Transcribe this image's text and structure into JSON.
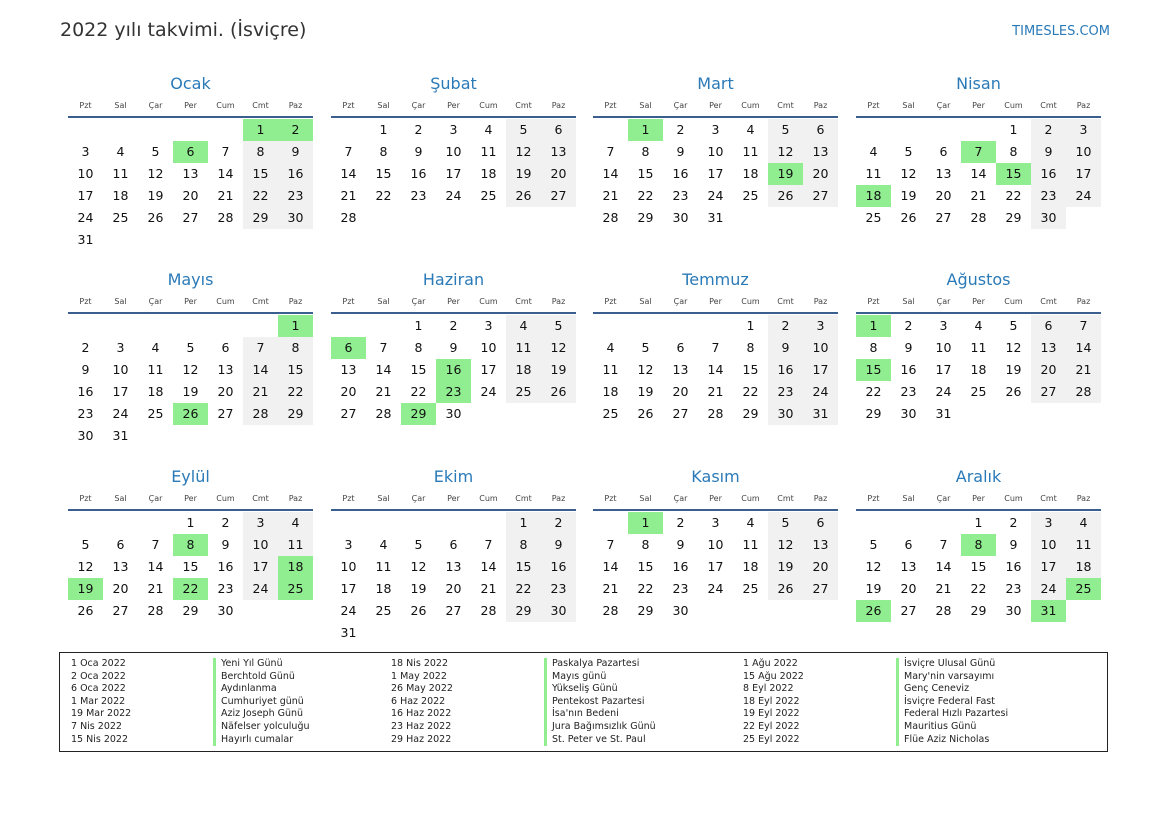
{
  "header": {
    "title": "2022 yılı takvimi. (İsviçre)",
    "site": "TIMESLES.COM"
  },
  "weekdays": [
    "Pzt",
    "Sal",
    "Çar",
    "Per",
    "Cum",
    "Cmt",
    "Paz"
  ],
  "months": [
    {
      "name": "Ocak",
      "offset": 5,
      "days": 31,
      "holidays": [
        1,
        2,
        6
      ]
    },
    {
      "name": "Şubat",
      "offset": 1,
      "days": 28,
      "holidays": []
    },
    {
      "name": "Mart",
      "offset": 1,
      "days": 31,
      "holidays": [
        1,
        19
      ]
    },
    {
      "name": "Nisan",
      "offset": 4,
      "days": 30,
      "holidays": [
        7,
        15,
        18
      ]
    },
    {
      "name": "Mayıs",
      "offset": 6,
      "days": 31,
      "holidays": [
        1,
        26
      ]
    },
    {
      "name": "Haziran",
      "offset": 2,
      "days": 30,
      "holidays": [
        6,
        16,
        23,
        29
      ]
    },
    {
      "name": "Temmuz",
      "offset": 4,
      "days": 31,
      "holidays": []
    },
    {
      "name": "Ağustos",
      "offset": 0,
      "days": 31,
      "holidays": [
        1,
        15
      ]
    },
    {
      "name": "Eylül",
      "offset": 3,
      "days": 30,
      "holidays": [
        8,
        18,
        19,
        22,
        25
      ]
    },
    {
      "name": "Ekim",
      "offset": 5,
      "days": 31,
      "holidays": []
    },
    {
      "name": "Kasım",
      "offset": 1,
      "days": 30,
      "holidays": [
        1
      ]
    },
    {
      "name": "Aralık",
      "offset": 3,
      "days": 31,
      "holidays": [
        8,
        25,
        26,
        31
      ]
    }
  ],
  "legend": [
    {
      "date": "1 Oca 2022",
      "name": "Yeni Yıl Günü"
    },
    {
      "date": "2 Oca 2022",
      "name": "Berchtold Günü"
    },
    {
      "date": "6 Oca 2022",
      "name": "Aydınlanma"
    },
    {
      "date": "1 Mar 2022",
      "name": "Cumhuriyet günü"
    },
    {
      "date": "19 Mar 2022",
      "name": "Aziz Joseph Günü"
    },
    {
      "date": "7 Nis 2022",
      "name": "Näfelser yolculuğu"
    },
    {
      "date": "15 Nis 2022",
      "name": "Hayırlı cumalar"
    },
    {
      "date": "18 Nis 2022",
      "name": "Paskalya Pazartesi"
    },
    {
      "date": "1 May 2022",
      "name": "Mayıs günü"
    },
    {
      "date": "26 May 2022",
      "name": "Yükseliş Günü"
    },
    {
      "date": "6 Haz 2022",
      "name": "Pentekost Pazartesi"
    },
    {
      "date": "16 Haz 2022",
      "name": "İsa'nın Bedeni"
    },
    {
      "date": "23 Haz 2022",
      "name": "Jura Bağımsızlık Günü"
    },
    {
      "date": "29 Haz 2022",
      "name": "St. Peter ve St. Paul"
    },
    {
      "date": "1 Ağu 2022",
      "name": "İsviçre Ulusal Günü"
    },
    {
      "date": "15 Ağu 2022",
      "name": "Mary'nin varsayımı"
    },
    {
      "date": "8 Eyl 2022",
      "name": "Genç Ceneviz"
    },
    {
      "date": "18 Eyl 2022",
      "name": "İsviçre Federal Fast"
    },
    {
      "date": "19 Eyl 2022",
      "name": "Federal Hızlı Pazartesi"
    },
    {
      "date": "22 Eyl 2022",
      "name": "Mauritius Günü"
    },
    {
      "date": "25 Eyl 2022",
      "name": "Flüe Aziz Nicholas"
    }
  ]
}
